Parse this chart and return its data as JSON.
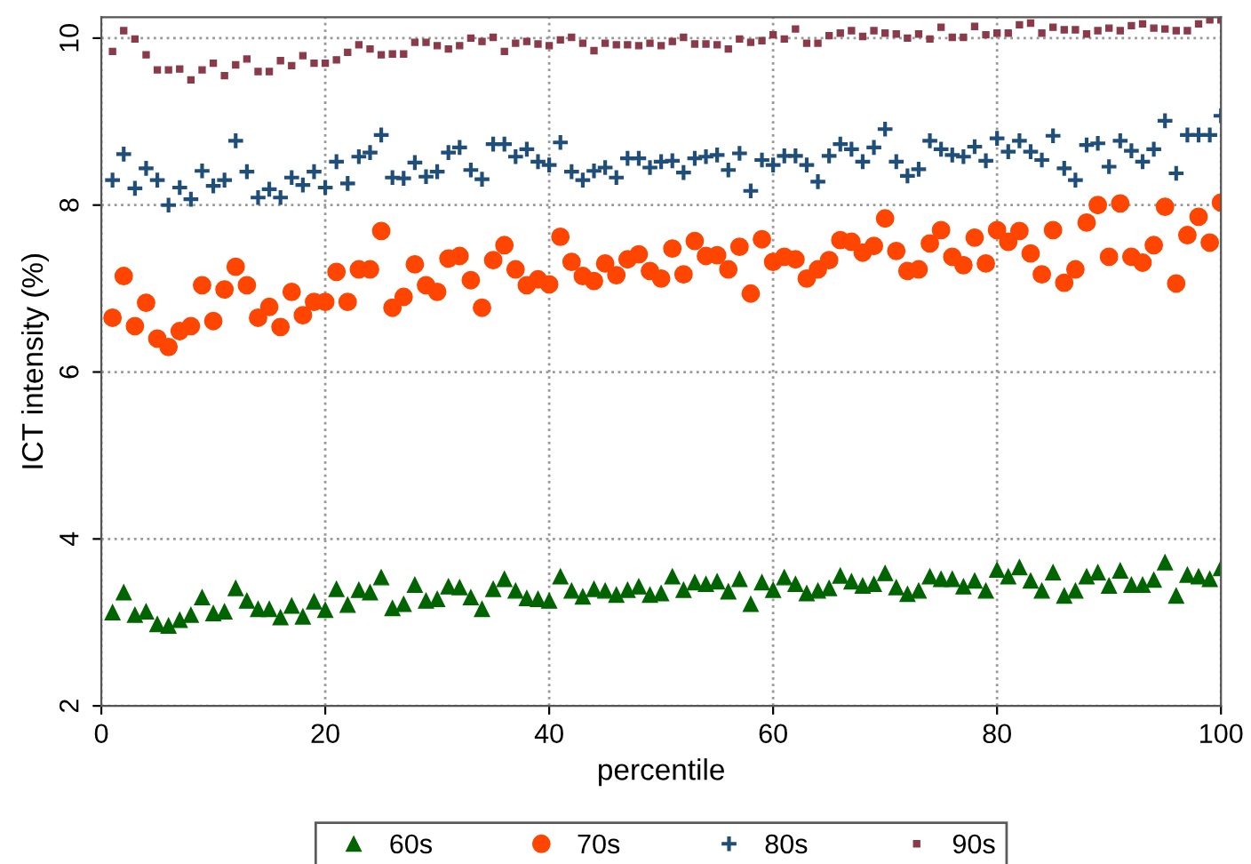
{
  "chart_data": {
    "type": "scatter",
    "xlabel": "percentile",
    "ylabel": "ICT intensity (%)",
    "xlim": [
      0,
      100
    ],
    "xticks": [
      0,
      20,
      40,
      60,
      80,
      100
    ],
    "ylim": [
      2,
      10.25
    ],
    "yticks": [
      2,
      4,
      6,
      8,
      10
    ],
    "grid": true,
    "legend": "bottom",
    "x": [
      1,
      2,
      3,
      4,
      5,
      6,
      7,
      8,
      9,
      10,
      11,
      12,
      13,
      14,
      15,
      16,
      17,
      18,
      19,
      20,
      21,
      22,
      23,
      24,
      25,
      26,
      27,
      28,
      29,
      30,
      31,
      32,
      33,
      34,
      35,
      36,
      37,
      38,
      39,
      40,
      41,
      42,
      43,
      44,
      45,
      46,
      47,
      48,
      49,
      50,
      51,
      52,
      53,
      54,
      55,
      56,
      57,
      58,
      59,
      60,
      61,
      62,
      63,
      64,
      65,
      66,
      67,
      68,
      69,
      70,
      71,
      72,
      73,
      74,
      75,
      76,
      77,
      78,
      79,
      80,
      81,
      82,
      83,
      84,
      85,
      86,
      87,
      88,
      89,
      90,
      91,
      92,
      93,
      94,
      95,
      96,
      97,
      98,
      99,
      100
    ],
    "series": [
      {
        "name": "60s",
        "color": "#006400",
        "marker": "triangle",
        "values": [
          3.12,
          3.36,
          3.09,
          3.13,
          2.98,
          2.96,
          3.03,
          3.09,
          3.3,
          3.11,
          3.13,
          3.41,
          3.26,
          3.16,
          3.16,
          3.06,
          3.2,
          3.07,
          3.25,
          3.15,
          3.4,
          3.21,
          3.39,
          3.36,
          3.54,
          3.17,
          3.22,
          3.45,
          3.26,
          3.28,
          3.43,
          3.42,
          3.3,
          3.16,
          3.4,
          3.52,
          3.38,
          3.29,
          3.28,
          3.26,
          3.55,
          3.38,
          3.31,
          3.4,
          3.38,
          3.33,
          3.39,
          3.43,
          3.33,
          3.35,
          3.55,
          3.39,
          3.48,
          3.46,
          3.49,
          3.37,
          3.52,
          3.22,
          3.48,
          3.39,
          3.54,
          3.46,
          3.35,
          3.38,
          3.41,
          3.56,
          3.49,
          3.44,
          3.46,
          3.59,
          3.42,
          3.34,
          3.38,
          3.55,
          3.52,
          3.52,
          3.43,
          3.5,
          3.38,
          3.63,
          3.55,
          3.66,
          3.5,
          3.38,
          3.6,
          3.32,
          3.38,
          3.55,
          3.6,
          3.44,
          3.62,
          3.45,
          3.45,
          3.51,
          3.72,
          3.32,
          3.57,
          3.55,
          3.52,
          3.65
        ]
      },
      {
        "name": "70s",
        "color": "#ff4500",
        "marker": "circle",
        "values": [
          6.65,
          7.15,
          6.55,
          6.83,
          6.4,
          6.3,
          6.49,
          6.55,
          7.04,
          6.61,
          6.99,
          7.26,
          7.04,
          6.65,
          6.78,
          6.54,
          6.96,
          6.68,
          6.84,
          6.84,
          7.2,
          6.84,
          7.23,
          7.23,
          7.69,
          6.77,
          6.9,
          7.29,
          7.04,
          6.96,
          7.36,
          7.39,
          7.1,
          6.77,
          7.34,
          7.52,
          7.23,
          7.04,
          7.11,
          7.05,
          7.62,
          7.32,
          7.15,
          7.09,
          7.3,
          7.16,
          7.35,
          7.41,
          7.21,
          7.12,
          7.48,
          7.17,
          7.57,
          7.39,
          7.4,
          7.23,
          7.5,
          6.94,
          7.59,
          7.32,
          7.38,
          7.35,
          7.12,
          7.23,
          7.34,
          7.58,
          7.56,
          7.43,
          7.51,
          7.84,
          7.45,
          7.21,
          7.23,
          7.54,
          7.7,
          7.38,
          7.28,
          7.61,
          7.3,
          7.7,
          7.56,
          7.69,
          7.42,
          7.17,
          7.7,
          7.07,
          7.23,
          7.79,
          8.0,
          7.38,
          8.02,
          7.38,
          7.31,
          7.52,
          7.98,
          7.06,
          7.64,
          7.86,
          7.55,
          8.03
        ]
      },
      {
        "name": "80s",
        "color": "#1f4e79",
        "marker": "cross",
        "values": [
          8.3,
          8.61,
          8.2,
          8.44,
          8.3,
          8.0,
          8.21,
          8.07,
          8.41,
          8.23,
          8.3,
          8.77,
          8.4,
          8.09,
          8.19,
          8.09,
          8.33,
          8.24,
          8.4,
          8.21,
          8.52,
          8.26,
          8.58,
          8.63,
          8.84,
          8.33,
          8.32,
          8.51,
          8.34,
          8.4,
          8.63,
          8.69,
          8.42,
          8.31,
          8.73,
          8.73,
          8.58,
          8.67,
          8.52,
          8.48,
          8.75,
          8.4,
          8.3,
          8.41,
          8.45,
          8.33,
          8.56,
          8.56,
          8.45,
          8.52,
          8.53,
          8.39,
          8.56,
          8.58,
          8.6,
          8.42,
          8.62,
          8.17,
          8.54,
          8.48,
          8.59,
          8.59,
          8.48,
          8.28,
          8.59,
          8.73,
          8.67,
          8.52,
          8.69,
          8.91,
          8.52,
          8.35,
          8.43,
          8.77,
          8.67,
          8.6,
          8.58,
          8.7,
          8.53,
          8.8,
          8.64,
          8.77,
          8.64,
          8.54,
          8.83,
          8.44,
          8.3,
          8.72,
          8.74,
          8.46,
          8.77,
          8.65,
          8.52,
          8.67,
          9.01,
          8.38,
          8.84,
          8.84,
          8.84,
          9.07
        ]
      },
      {
        "name": "90s",
        "color": "#8b3a4a",
        "marker": "square",
        "values": [
          9.84,
          10.09,
          9.99,
          9.8,
          9.62,
          9.62,
          9.63,
          9.5,
          9.62,
          9.7,
          9.55,
          9.68,
          9.75,
          9.6,
          9.6,
          9.73,
          9.67,
          9.79,
          9.7,
          9.7,
          9.74,
          9.83,
          9.92,
          9.87,
          9.8,
          9.81,
          9.81,
          9.95,
          9.95,
          9.91,
          9.87,
          9.91,
          10.0,
          9.96,
          10.01,
          9.84,
          9.94,
          9.96,
          9.93,
          9.91,
          9.98,
          10.01,
          9.94,
          9.85,
          9.94,
          9.92,
          9.92,
          9.91,
          9.94,
          9.91,
          9.96,
          10.01,
          9.93,
          9.93,
          9.92,
          9.87,
          9.99,
          9.95,
          9.97,
          10.04,
          9.99,
          10.11,
          9.94,
          9.94,
          10.03,
          10.06,
          10.09,
          10.02,
          10.09,
          10.06,
          10.05,
          10.0,
          10.05,
          9.99,
          10.13,
          10.01,
          10.01,
          10.14,
          10.04,
          10.06,
          10.06,
          10.16,
          10.18,
          10.06,
          10.13,
          10.1,
          10.1,
          10.05,
          10.09,
          10.12,
          10.09,
          10.15,
          10.17,
          10.12,
          10.11,
          10.09,
          10.09,
          10.17,
          10.22,
          10.22
        ]
      }
    ]
  }
}
